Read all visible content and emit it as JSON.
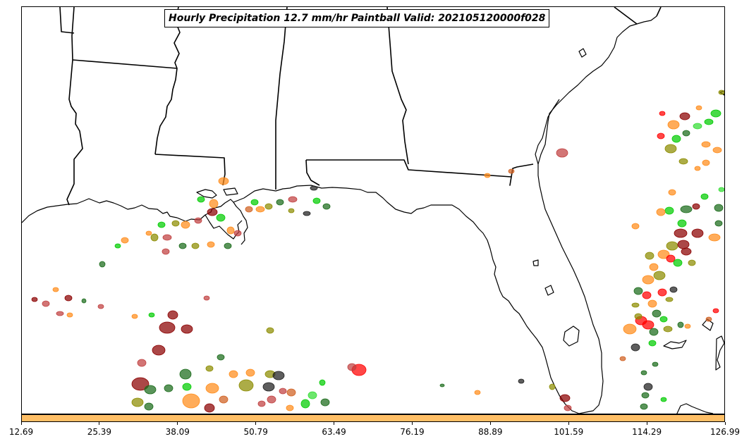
{
  "title": "Hourly Precipitation 12.7 mm/hr Paintball Valid: 202105120000f028",
  "colors": {
    "coastline": "#000000",
    "colorbar_fill": "#ffbf66",
    "paintball_palette": [
      "#ff0000",
      "#00cc00",
      "#ff8c1a",
      "#8b0000",
      "#1a6b1a",
      "#8c8c00",
      "#c04040",
      "#202020",
      "#d06020",
      "#33dd33"
    ]
  },
  "colorbar": {
    "ticks": [
      "12.69",
      "25.39",
      "38.09",
      "50.79",
      "63.49",
      "76.19",
      "88.89",
      "101.59",
      "114.29",
      "126.99"
    ]
  },
  "layers": [
    "state-boundaries",
    "coastline",
    "precipitation-paintballs"
  ]
}
